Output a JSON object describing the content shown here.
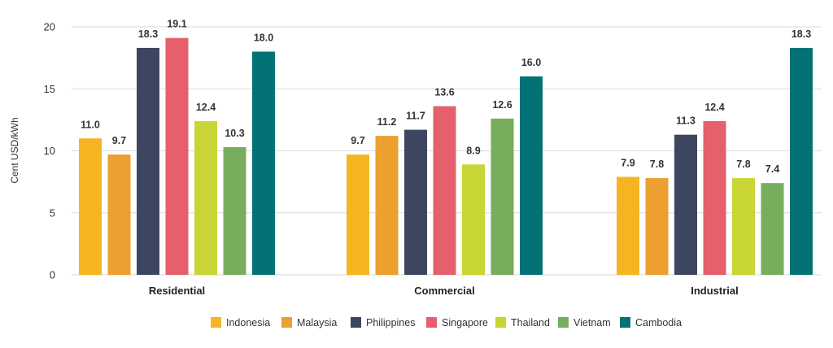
{
  "chart_data": {
    "type": "bar",
    "title": "",
    "xlabel": "",
    "ylabel": "Cent USD/kWh",
    "ylim": [
      0,
      20
    ],
    "yticks": [
      0,
      5,
      10,
      15,
      20
    ],
    "grid": true,
    "legend_position": "bottom",
    "categories": [
      "Residential",
      "Commercial",
      "Industrial"
    ],
    "series": [
      {
        "name": "Indonesia",
        "color": "#F5B523",
        "values": [
          11.0,
          9.7,
          7.9
        ],
        "labels": [
          "11.0",
          "9.7",
          "7.9"
        ]
      },
      {
        "name": "Malaysia",
        "color": "#EBA02F",
        "values": [
          9.7,
          11.2,
          7.8
        ],
        "labels": [
          "9.7",
          "11.2",
          "7.8"
        ]
      },
      {
        "name": "Philippines",
        "color": "#3D4660",
        "values": [
          18.3,
          11.7,
          11.3
        ],
        "labels": [
          "18.3",
          "11.7",
          "11.3"
        ]
      },
      {
        "name": "Singapore",
        "color": "#E5606A",
        "values": [
          19.1,
          13.6,
          12.4
        ],
        "labels": [
          "19.1",
          "13.6",
          "12.4"
        ]
      },
      {
        "name": "Thailand",
        "color": "#C8D535",
        "values": [
          12.4,
          8.9,
          7.8
        ],
        "labels": [
          "12.4",
          "8.9",
          "7.8"
        ]
      },
      {
        "name": "Vietnam",
        "color": "#76AE5E",
        "values": [
          10.3,
          12.6,
          7.4
        ],
        "labels": [
          "10.3",
          "12.6",
          "7.4"
        ]
      },
      {
        "name": "Cambodia",
        "color": "#027277",
        "values": [
          18.0,
          16.0,
          18.3
        ],
        "labels": [
          "18.0",
          "16.0",
          "18.3"
        ]
      }
    ]
  }
}
